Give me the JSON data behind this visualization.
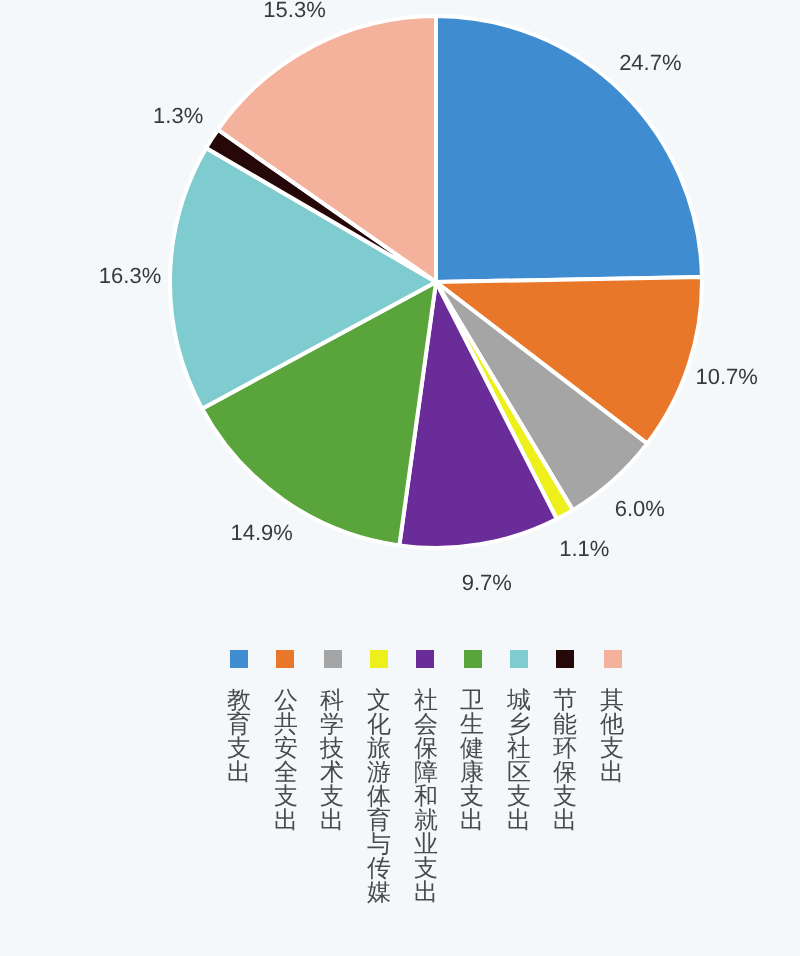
{
  "chart_data": {
    "type": "pie",
    "categories": [
      "教育支出",
      "公共安全支出",
      "科学技术支出",
      "文化旅游体育与传媒",
      "社会保障和就业支出",
      "卫生健康支出",
      "城乡社区支出",
      "节能环保支出",
      "其他支出"
    ],
    "values": [
      24.7,
      10.7,
      6.0,
      1.1,
      9.7,
      14.9,
      16.3,
      1.3,
      15.3
    ],
    "colors": [
      "#3f8dd0",
      "#e8772a",
      "#a5a5a5",
      "#eef01c",
      "#6a2c98",
      "#5aa43c",
      "#7ecbd0",
      "#260808",
      "#f4b19b"
    ],
    "value_labels": [
      "24.7%",
      "10.7%",
      "6.0%",
      "1.1%",
      "9.7%",
      "14.9%",
      "16.3%",
      "1.3%",
      "15.3%"
    ],
    "legend": "bottom"
  }
}
